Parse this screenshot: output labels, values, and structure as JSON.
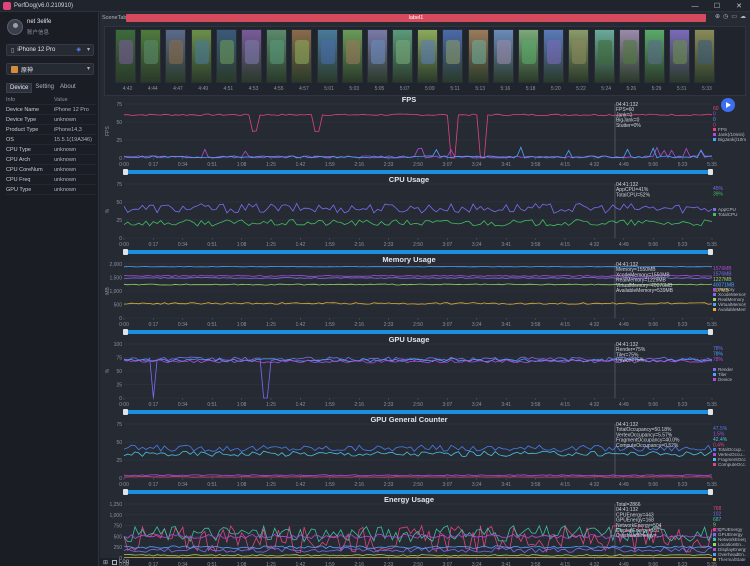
{
  "window": {
    "title": "PerfDog(v6.0.210910)",
    "controls": [
      "—",
      "☐",
      "✕"
    ]
  },
  "user": {
    "name": "net 3elife",
    "sub": "账户信息"
  },
  "device_select": {
    "label": "iPhone 12 Pro"
  },
  "app_select": {
    "label": "原神"
  },
  "tabs": [
    "Device",
    "Setting",
    "About"
  ],
  "info": {
    "header": {
      "k": "Info",
      "v": "Value"
    },
    "rows": [
      {
        "k": "Device Name",
        "v": "iPhone 12 Pro"
      },
      {
        "k": "Device Type",
        "v": "unknown"
      },
      {
        "k": "Product Type",
        "v": "iPhone14,3"
      },
      {
        "k": "OS",
        "v": "15.5.1(19A346)"
      },
      {
        "k": "CPU Type",
        "v": "unknown"
      },
      {
        "k": "CPU Arch",
        "v": "unknown"
      },
      {
        "k": "CPU CoreNum",
        "v": "unknown"
      },
      {
        "k": "CPU Freq",
        "v": "unknown"
      },
      {
        "k": "GPU Type",
        "v": "unknown"
      }
    ]
  },
  "scene": {
    "label": "SceneTab",
    "track": "label1"
  },
  "thumb_times": [
    "4:42",
    "4:44",
    "4:47",
    "4:49",
    "4:51",
    "4:53",
    "4:55",
    "4:57",
    "5:01",
    "5:03",
    "5:05",
    "5:07",
    "5:09",
    "5:11",
    "5:13",
    "5:16",
    "5:18",
    "5:20",
    "5:22",
    "5:24",
    "5:26",
    "5:29",
    "5:31",
    "5:33"
  ],
  "time_ticks": [
    "0:00",
    "0:17",
    "0:34",
    "0:51",
    "1:08",
    "1:25",
    "1:42",
    "1:59",
    "2:16",
    "2:33",
    "2:50",
    "3:07",
    "3:24",
    "3:41",
    "3:58",
    "4:15",
    "4:32",
    "4:49",
    "5:06",
    "5:23",
    "5:35"
  ],
  "panels": [
    {
      "title": "FPS",
      "ylabel": "FPS",
      "yticks": [
        "75",
        "50",
        "25",
        "0"
      ],
      "ymax": 75,
      "readout": [
        "04:41:132",
        "FPS=60",
        "Jank=0",
        "BigJank=0",
        "Stutter=0%"
      ],
      "right_values": [
        "60",
        "0",
        "0",
        "0"
      ],
      "legend": [
        "FPS",
        "Jank(/10min)",
        "BigJank(/10min)"
      ],
      "colors": [
        "#e0457b",
        "#b04bd8",
        "#4aa3ff"
      ]
    },
    {
      "title": "CPU Usage",
      "ylabel": "%",
      "yticks": [
        "75",
        "50",
        "25",
        "0"
      ],
      "ymax": 75,
      "readout": [
        "04:41:132",
        "AppCPU=41%",
        "TotalCPU=52%"
      ],
      "right_values": [
        "45%",
        "39%"
      ],
      "legend": [
        "AppCPU",
        "TotalCPU"
      ],
      "colors": [
        "#7b6cf0",
        "#3fbf5f"
      ]
    },
    {
      "title": "Memory Usage",
      "ylabel": "MB",
      "yticks": [
        "2,000",
        "1,500",
        "1,000",
        "500",
        "0"
      ],
      "ymax": 2000,
      "readout": [
        "04:41:132",
        "Memory=1550MB",
        "XcodeMemory=1550MB",
        "RealMemory=1229MB",
        "VirtualMemory=40070MB",
        "AvailableMemory=539MB"
      ],
      "right_values": [
        "1576MB",
        "1576MB",
        "1227MB",
        "40071MB",
        "607MB"
      ],
      "legend": [
        "Memory",
        "XcodeMemory",
        "RealMemory",
        "VirtualMemory",
        "AvailableMem..."
      ],
      "colors": [
        "#b04bd8",
        "#7b6cf0",
        "#9ad26a",
        "#4aa3ff",
        "#e0b13f"
      ]
    },
    {
      "title": "GPU Usage",
      "ylabel": "%",
      "yticks": [
        "100",
        "75",
        "50",
        "25",
        "0"
      ],
      "ymax": 100,
      "readout": [
        "04:41:132",
        "Render=75%",
        "Tiler=75%",
        "Device=75%"
      ],
      "right_values": [
        "78%",
        "78%",
        "78%"
      ],
      "legend": [
        "Render",
        "Tiler",
        "Device"
      ],
      "colors": [
        "#7b6cf0",
        "#4aa3ff",
        "#b04bd8"
      ]
    },
    {
      "title": "GPU General Counter",
      "ylabel": "",
      "yticks": [
        "75",
        "50",
        "25",
        "0"
      ],
      "ymax": 75,
      "readout": [
        "04:41:132",
        "TotalOccupancy=50.18%",
        "VertexOccupancy=5.57%",
        "FragmentOccupancy=40.0%",
        "ComputeOccupancy=0.52%"
      ],
      "right_values": [
        "47.5%",
        "1.5%",
        "42.4%",
        "0.4%"
      ],
      "legend": [
        "TotalOccup...",
        "VertexOccu...",
        "FragmentOcc...",
        "ComputeOcc..."
      ],
      "colors": [
        "#4a7cf0",
        "#b04bd8",
        "#4ac0e0",
        "#e0457b"
      ]
    },
    {
      "title": "Energy Usage",
      "ylabel": "",
      "yticks": [
        "1,250",
        "1,000",
        "750",
        "500",
        "250",
        "0"
      ],
      "ymax": 1250,
      "readout": [
        "Total=2866",
        "04:41:132",
        "CPUEnergy=443",
        "GPUEnergy=168",
        "NetworkEnergy=504",
        "DisplayEnergy=551",
        "OverheadEnergy=..."
      ],
      "right_values": [
        "768",
        "102",
        "687",
        "9",
        "276",
        "0"
      ],
      "legend": [
        "CPUEnergy",
        "GPUEnergy",
        "NetworkEnergy",
        "LocationEn...",
        "DisplayEnergy",
        "OverheadEn...",
        "ThermalState"
      ],
      "colors": [
        "#e0457b",
        "#7b6cf0",
        "#3fbfa0",
        "#9ad26a",
        "#b04bd8",
        "#4aa3ff",
        "#e0b13f"
      ]
    }
  ],
  "bottom": {
    "log": "Log"
  }
}
